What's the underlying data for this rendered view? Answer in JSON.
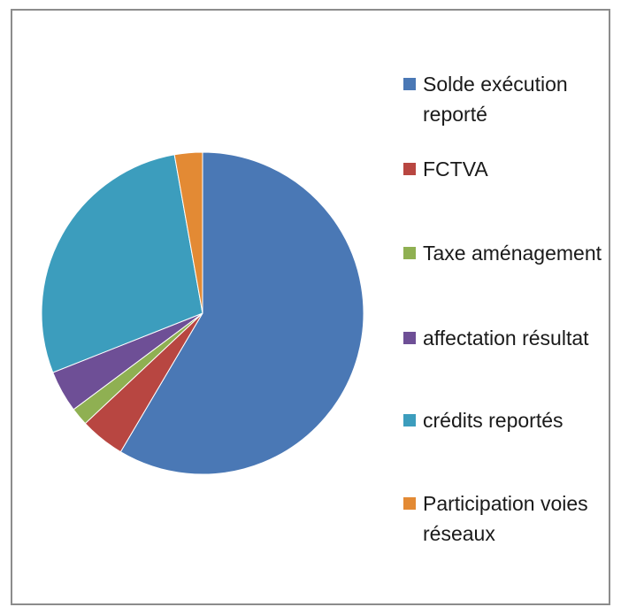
{
  "chart_data": {
    "type": "pie",
    "title": "",
    "slices": [
      {
        "label": "Solde exécution reporté",
        "value": 58.5,
        "color": "#4a78b5"
      },
      {
        "label": "FCTVA",
        "value": 4.5,
        "color": "#b84641"
      },
      {
        "label": "Taxe aménagement",
        "value": 1.8,
        "color": "#8fb052"
      },
      {
        "label": "affectation résultat",
        "value": 4.2,
        "color": "#6e4f96"
      },
      {
        "label": "crédits reportés",
        "value": 28.2,
        "color": "#3c9dbd"
      },
      {
        "label": "Participation voies  réseaux",
        "value": 2.8,
        "color": "#e38a34"
      }
    ],
    "legend_position": "right"
  }
}
